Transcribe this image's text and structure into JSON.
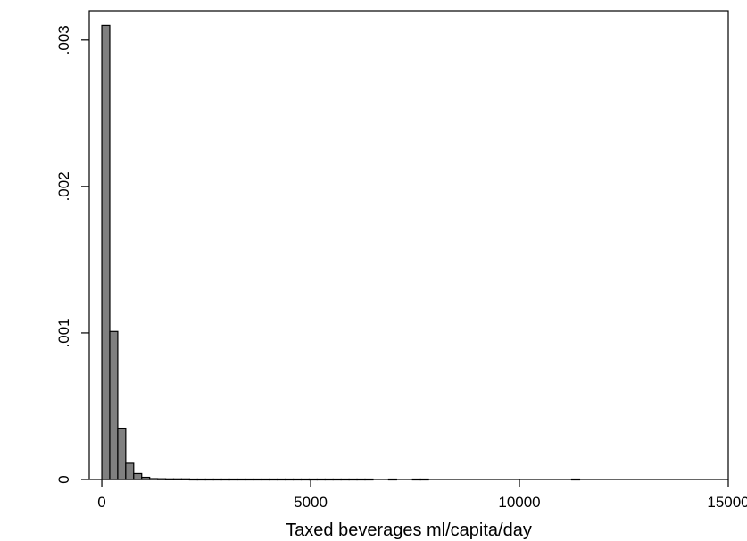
{
  "chart_data": {
    "type": "bar",
    "title": "",
    "xlabel": "Taxed beverages ml/capita/day",
    "ylabel": "",
    "xlim": [
      -300,
      15000
    ],
    "ylim": [
      0,
      0.0032
    ],
    "grid": false,
    "legend": "none",
    "bin_width": 191,
    "x_ticks": [
      {
        "value": 0,
        "label": "0"
      },
      {
        "value": 5000,
        "label": "5000"
      },
      {
        "value": 10000,
        "label": "10000"
      },
      {
        "value": 15000,
        "label": "15000"
      }
    ],
    "y_ticks": [
      {
        "value": 0,
        "label": "0"
      },
      {
        "value": 0.001,
        "label": ".001"
      },
      {
        "value": 0.002,
        "label": ".002"
      },
      {
        "value": 0.003,
        "label": ".003"
      }
    ],
    "bins": [
      {
        "x_start": 0,
        "value": 0.0031
      },
      {
        "x_start": 191,
        "value": 0.00101
      },
      {
        "x_start": 382,
        "value": 0.00035
      },
      {
        "x_start": 573,
        "value": 0.00011
      },
      {
        "x_start": 764,
        "value": 4e-05
      },
      {
        "x_start": 955,
        "value": 1.5e-05
      },
      {
        "x_start": 1146,
        "value": 6e-06
      },
      {
        "x_start": 1337,
        "value": 5e-06
      },
      {
        "x_start": 1528,
        "value": 4e-06
      },
      {
        "x_start": 1719,
        "value": 4e-06
      },
      {
        "x_start": 1910,
        "value": 4e-06
      },
      {
        "x_start": 2101,
        "value": 3e-06
      },
      {
        "x_start": 2292,
        "value": 3e-06
      },
      {
        "x_start": 2483,
        "value": 3e-06
      },
      {
        "x_start": 2674,
        "value": 3e-06
      },
      {
        "x_start": 2865,
        "value": 3e-06
      },
      {
        "x_start": 3056,
        "value": 3e-06
      },
      {
        "x_start": 3247,
        "value": 3e-06
      },
      {
        "x_start": 3438,
        "value": 3e-06
      },
      {
        "x_start": 3629,
        "value": 3e-06
      },
      {
        "x_start": 3820,
        "value": 3e-06
      },
      {
        "x_start": 4011,
        "value": 3e-06
      },
      {
        "x_start": 4202,
        "value": 3e-06
      },
      {
        "x_start": 4393,
        "value": 3e-06
      },
      {
        "x_start": 4584,
        "value": 3e-06
      },
      {
        "x_start": 4775,
        "value": 3e-06
      },
      {
        "x_start": 4966,
        "value": 3e-06
      },
      {
        "x_start": 5157,
        "value": 3e-06
      },
      {
        "x_start": 5348,
        "value": 3e-06
      },
      {
        "x_start": 5539,
        "value": 3e-06
      },
      {
        "x_start": 5730,
        "value": 3e-06
      },
      {
        "x_start": 5921,
        "value": 3e-06
      },
      {
        "x_start": 6112,
        "value": 3e-06
      },
      {
        "x_start": 6303,
        "value": 3e-06
      },
      {
        "x_start": 6867,
        "value": 3e-06
      },
      {
        "x_start": 7440,
        "value": 3e-06
      },
      {
        "x_start": 7631,
        "value": 3e-06
      },
      {
        "x_start": 11250,
        "value": 3e-06
      }
    ]
  }
}
